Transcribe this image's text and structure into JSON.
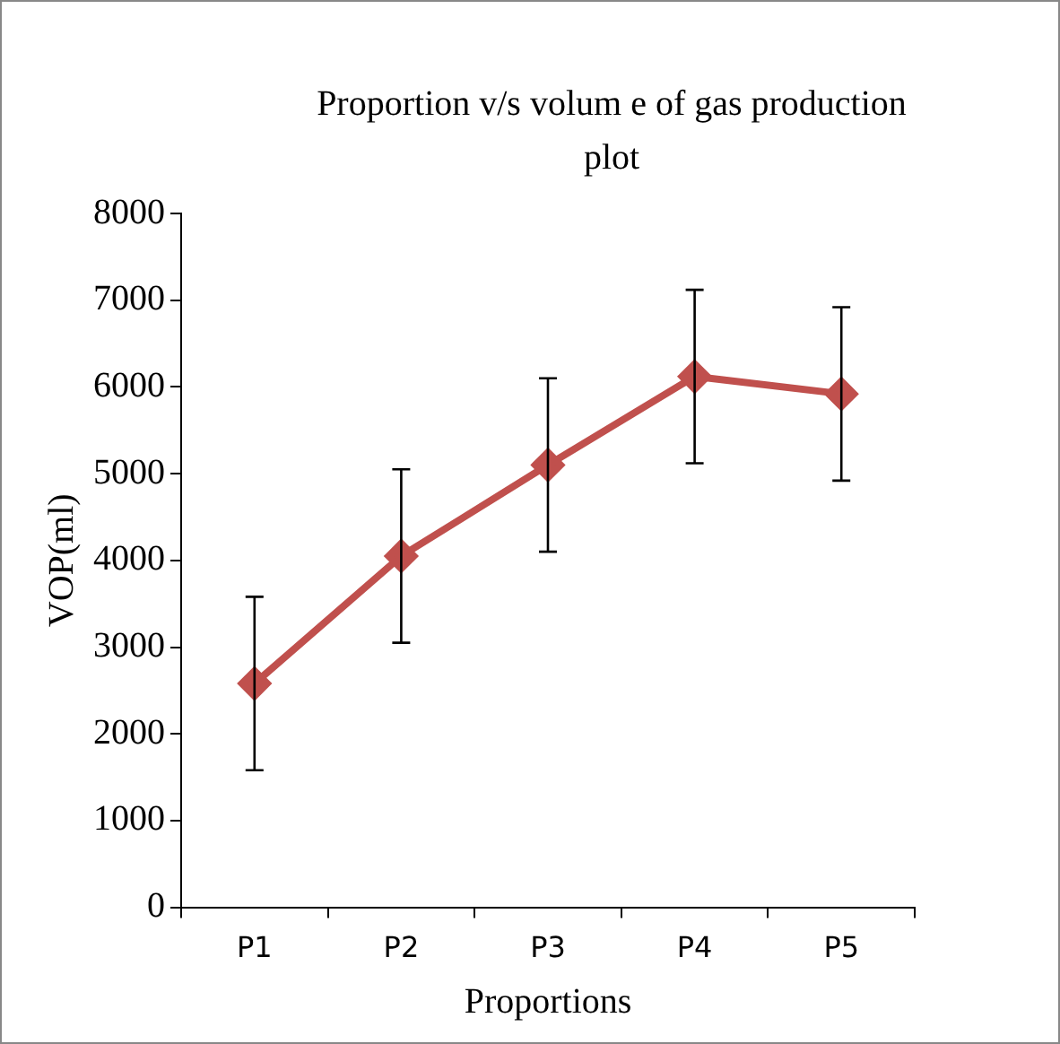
{
  "chart_data": {
    "type": "line",
    "title": "Proportion v/s volum e of gas production plot",
    "xlabel": "Proportions",
    "ylabel": "VOP(ml)",
    "categories": [
      "P1",
      "P2",
      "P3",
      "P4",
      "P5"
    ],
    "series": [
      {
        "color": "#c0504d",
        "values": [
          2580,
          4050,
          5100,
          6120,
          5920
        ],
        "errors": [
          1000,
          1000,
          1000,
          1000,
          1000
        ]
      }
    ],
    "ylim": [
      0,
      8000
    ],
    "yticks": [
      0,
      1000,
      2000,
      3000,
      4000,
      5000,
      6000,
      7000,
      8000
    ],
    "grid": false,
    "legend": false,
    "marker": "diamond",
    "line_style": "solid"
  }
}
